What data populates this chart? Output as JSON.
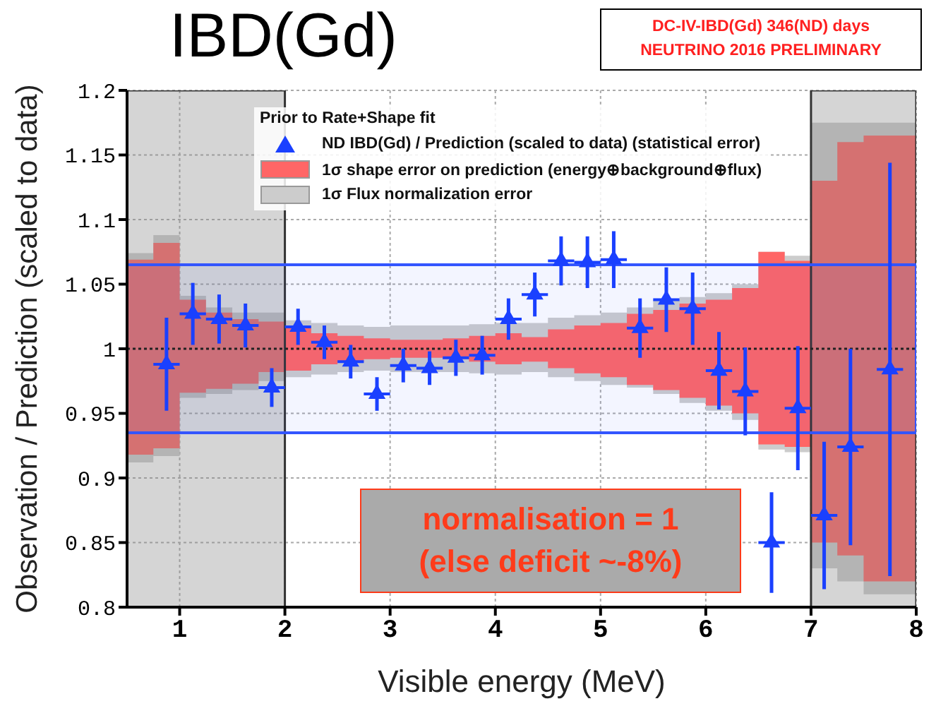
{
  "chart_data": {
    "type": "scatter",
    "title": "IBD(Gd)",
    "xlabel": "Visible energy (MeV)",
    "ylabel": "Observation / Prediction (scaled to data)",
    "legend_title": "Prior to Rate+Shape fit",
    "legend": "top",
    "grid": true,
    "xlim": [
      0.5,
      8
    ],
    "xticks": [
      1,
      2,
      3,
      4,
      5,
      6,
      7,
      8
    ],
    "ylim": [
      0.8,
      1.2
    ],
    "yticks": [
      0.8,
      0.85,
      0.9,
      0.95,
      1,
      1.05,
      1.1,
      1.15,
      1.2
    ],
    "annotations": [
      "DC-IV-IBD(Gd)  346(ND) days",
      "NEUTRINO 2016 PRELIMINARY",
      "normalisation = 1",
      "(else deficit ~-8%)"
    ],
    "ref_lines": [
      {
        "axis": "y",
        "value": 1,
        "color": "#222222",
        "line_style": "dotted"
      }
    ],
    "bands": [
      {
        "axis": "x",
        "from": 0.5,
        "to": 2,
        "color": "#888888"
      },
      {
        "axis": "x",
        "from": 7,
        "to": 8,
        "color": "#888888"
      },
      {
        "axis": "y",
        "from": 0.935,
        "to": 1.065,
        "color": "#3355ff"
      }
    ],
    "series": [
      {
        "type": "step",
        "name": "1σ Flux normalization error",
        "color": "#cccccc",
        "x": [
          0.5,
          0.75,
          1,
          1.25,
          1.5,
          1.75,
          2,
          2.25,
          2.5,
          2.75,
          3,
          3.25,
          3.5,
          3.75,
          4,
          4.25,
          4.5,
          4.75,
          5,
          5.25,
          5.5,
          5.75,
          6,
          6.25,
          6.5,
          6.75,
          7,
          7.25,
          7.5,
          8
        ],
        "values": [
          null,
          null,
          null,
          null,
          null,
          null,
          null,
          null,
          null,
          null,
          null,
          null,
          null,
          null,
          null,
          null,
          null,
          null,
          null,
          null,
          null,
          null,
          null,
          null,
          null,
          null,
          null,
          null,
          null,
          null
        ],
        "lower": [
          0.912,
          0.917,
          0.962,
          0.965,
          0.968,
          0.975,
          0.978,
          0.98,
          0.982,
          0.983,
          0.982,
          0.982,
          0.982,
          0.981,
          0.98,
          0.982,
          0.978,
          0.975,
          0.972,
          0.97,
          0.965,
          0.958,
          0.952,
          0.945,
          0.922,
          0.92,
          0.83,
          0.82,
          0.81,
          0.81
        ],
        "upper": [
          1.074,
          1.088,
          1.041,
          1.032,
          1.028,
          1.028,
          1.022,
          1.02,
          1.018,
          1.017,
          1.018,
          1.018,
          1.018,
          1.019,
          1.02,
          1.02,
          1.024,
          1.026,
          1.028,
          1.032,
          1.038,
          1.04,
          1.043,
          1.05,
          1.075,
          1.072,
          1.175,
          1.175,
          1.175,
          1.175
        ]
      },
      {
        "type": "step",
        "name": "1σ shape error on prediction (energy⊕background⊕flux)",
        "color": "#ff6666",
        "x": [
          0.5,
          0.75,
          1,
          1.25,
          1.5,
          1.75,
          2,
          2.25,
          2.5,
          2.75,
          3,
          3.25,
          3.5,
          3.75,
          4,
          4.25,
          4.5,
          4.75,
          5,
          5.25,
          5.5,
          5.75,
          6,
          6.25,
          6.5,
          6.75,
          7,
          7.25,
          7.5,
          8
        ],
        "values": [
          null,
          null,
          null,
          null,
          null,
          null,
          null,
          null,
          null,
          null,
          null,
          null,
          null,
          null,
          null,
          null,
          null,
          null,
          null,
          null,
          null,
          null,
          null,
          null,
          null,
          null,
          null,
          null,
          null,
          null
        ],
        "lower": [
          0.918,
          0.923,
          0.966,
          0.969,
          0.973,
          0.982,
          0.983,
          0.988,
          0.99,
          0.992,
          0.993,
          0.993,
          0.992,
          0.99,
          0.988,
          0.99,
          0.985,
          0.981,
          0.978,
          0.972,
          0.968,
          0.962,
          0.956,
          0.95,
          0.926,
          0.924,
          0.85,
          0.84,
          0.82,
          0.82
        ],
        "upper": [
          1.069,
          1.082,
          1.038,
          1.028,
          1.023,
          1.021,
          1.016,
          1.012,
          1.01,
          1.008,
          1.007,
          1.007,
          1.008,
          1.01,
          1.012,
          1.009,
          1.015,
          1.018,
          1.02,
          1.027,
          1.03,
          1.035,
          1.038,
          1.047,
          1.075,
          1.068,
          1.13,
          1.16,
          1.165,
          1.165
        ]
      },
      {
        "name": "ND IBD(Gd) / Prediction (scaled to data) (statistical error)",
        "color": "#1a40ff",
        "marker": "triangle",
        "x": [
          0.875,
          1.125,
          1.375,
          1.625,
          1.875,
          2.125,
          2.375,
          2.625,
          2.875,
          3.125,
          3.375,
          3.625,
          3.875,
          4.125,
          4.375,
          4.625,
          4.875,
          5.125,
          5.375,
          5.625,
          5.875,
          6.125,
          6.375,
          6.625,
          6.875,
          7.125,
          7.375,
          7.75
        ],
        "values": [
          0.988,
          1.027,
          1.023,
          1.018,
          0.97,
          1.017,
          1.005,
          0.99,
          0.965,
          0.987,
          0.985,
          0.993,
          0.995,
          1.023,
          1.042,
          1.068,
          1.067,
          1.069,
          1.016,
          1.038,
          1.031,
          0.983,
          0.967,
          0.85,
          0.954,
          0.871,
          0.924,
          0.984
        ],
        "errors": [
          0.036,
          0.024,
          0.019,
          0.017,
          0.015,
          0.014,
          0.013,
          0.013,
          0.013,
          0.013,
          0.013,
          0.014,
          0.015,
          0.016,
          0.017,
          0.019,
          0.02,
          0.022,
          0.023,
          0.025,
          0.028,
          0.03,
          0.034,
          0.039,
          0.048,
          0.057,
          0.076,
          0.16
        ],
        "xerrors": [
          0.125,
          0.125,
          0.125,
          0.125,
          0.125,
          0.125,
          0.125,
          0.125,
          0.125,
          0.125,
          0.125,
          0.125,
          0.125,
          0.125,
          0.125,
          0.125,
          0.125,
          0.125,
          0.125,
          0.125,
          0.125,
          0.125,
          0.125,
          0.125,
          0.125,
          0.125,
          0.125,
          0.125
        ]
      }
    ]
  }
}
